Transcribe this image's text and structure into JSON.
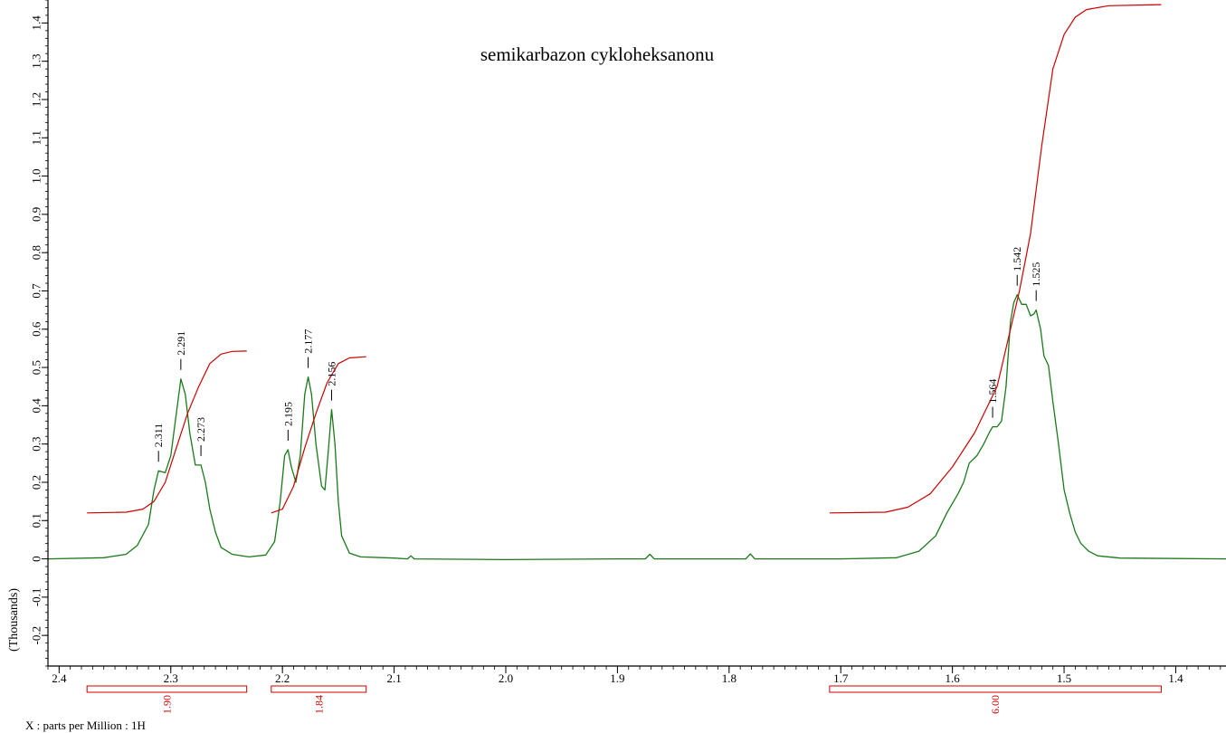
{
  "chart_data": {
    "type": "line",
    "title": "semikarbazon cykloheksanonu",
    "xlabel": "X : parts per Million : 1H",
    "ylabel": "(Thousands)",
    "xlim": [
      2.41,
      1.355
    ],
    "ylim": [
      -0.28,
      1.46
    ],
    "x_ticks": [
      "2.4",
      "2.3",
      "2.2",
      "2.1",
      "2.0",
      "1.9",
      "1.8",
      "1.7",
      "1.6",
      "1.5",
      "1.4"
    ],
    "y_ticks": [
      "-0.2",
      "-0.1",
      "0",
      "0.1",
      "0.2",
      "0.3",
      "0.4",
      "0.5",
      "0.6",
      "0.7",
      "0.8",
      "0.9",
      "1.0",
      "1.1",
      "1.2",
      "1.3",
      "1.4"
    ],
    "grid": false,
    "colors": {
      "spectrum": "#1a7a1a",
      "integral": "#cc0000",
      "axis": "#000000"
    },
    "series": [
      {
        "role": "spectrum",
        "points": [
          [
            2.41,
            0.0
          ],
          [
            2.36,
            0.003
          ],
          [
            2.34,
            0.012
          ],
          [
            2.33,
            0.035
          ],
          [
            2.32,
            0.09
          ],
          [
            2.315,
            0.18
          ],
          [
            2.311,
            0.23
          ],
          [
            2.305,
            0.225
          ],
          [
            2.3,
            0.27
          ],
          [
            2.295,
            0.38
          ],
          [
            2.291,
            0.47
          ],
          [
            2.287,
            0.43
          ],
          [
            2.283,
            0.33
          ],
          [
            2.278,
            0.245
          ],
          [
            2.273,
            0.245
          ],
          [
            2.269,
            0.2
          ],
          [
            2.265,
            0.13
          ],
          [
            2.26,
            0.07
          ],
          [
            2.255,
            0.03
          ],
          [
            2.245,
            0.012
          ],
          [
            2.23,
            0.005
          ],
          [
            2.215,
            0.01
          ],
          [
            2.207,
            0.045
          ],
          [
            2.202,
            0.15
          ],
          [
            2.198,
            0.27
          ],
          [
            2.195,
            0.285
          ],
          [
            2.192,
            0.24
          ],
          [
            2.188,
            0.2
          ],
          [
            2.184,
            0.27
          ],
          [
            2.18,
            0.43
          ],
          [
            2.177,
            0.475
          ],
          [
            2.174,
            0.43
          ],
          [
            2.17,
            0.3
          ],
          [
            2.165,
            0.19
          ],
          [
            2.162,
            0.18
          ],
          [
            2.159,
            0.28
          ],
          [
            2.156,
            0.39
          ],
          [
            2.153,
            0.3
          ],
          [
            2.15,
            0.15
          ],
          [
            2.147,
            0.06
          ],
          [
            2.14,
            0.015
          ],
          [
            2.13,
            0.005
          ],
          [
            2.1,
            0.002
          ],
          [
            2.088,
            0.0
          ],
          [
            2.085,
            0.008
          ],
          [
            2.082,
            0.0
          ],
          [
            2.0,
            -0.002
          ],
          [
            1.9,
            0.0
          ],
          [
            1.875,
            0.0
          ],
          [
            1.871,
            0.012
          ],
          [
            1.867,
            0.0
          ],
          [
            1.785,
            0.0
          ],
          [
            1.781,
            0.013
          ],
          [
            1.777,
            0.0
          ],
          [
            1.7,
            0.0
          ],
          [
            1.65,
            0.003
          ],
          [
            1.63,
            0.02
          ],
          [
            1.615,
            0.06
          ],
          [
            1.605,
            0.12
          ],
          [
            1.595,
            0.17
          ],
          [
            1.59,
            0.2
          ],
          [
            1.585,
            0.25
          ],
          [
            1.578,
            0.27
          ],
          [
            1.572,
            0.3
          ],
          [
            1.567,
            0.33
          ],
          [
            1.564,
            0.345
          ],
          [
            1.56,
            0.345
          ],
          [
            1.556,
            0.36
          ],
          [
            1.552,
            0.45
          ],
          [
            1.548,
            0.62
          ],
          [
            1.545,
            0.67
          ],
          [
            1.542,
            0.69
          ],
          [
            1.538,
            0.665
          ],
          [
            1.534,
            0.665
          ],
          [
            1.53,
            0.635
          ],
          [
            1.527,
            0.64
          ],
          [
            1.525,
            0.65
          ],
          [
            1.521,
            0.6
          ],
          [
            1.518,
            0.53
          ],
          [
            1.514,
            0.505
          ],
          [
            1.51,
            0.41
          ],
          [
            1.505,
            0.3
          ],
          [
            1.5,
            0.18
          ],
          [
            1.495,
            0.12
          ],
          [
            1.49,
            0.07
          ],
          [
            1.485,
            0.04
          ],
          [
            1.478,
            0.02
          ],
          [
            1.47,
            0.008
          ],
          [
            1.45,
            0.002
          ],
          [
            1.355,
            0.0
          ]
        ]
      },
      {
        "role": "integral",
        "points": [
          [
            2.375,
            0.12
          ],
          [
            2.34,
            0.122
          ],
          [
            2.325,
            0.13
          ],
          [
            2.315,
            0.15
          ],
          [
            2.305,
            0.2
          ],
          [
            2.295,
            0.29
          ],
          [
            2.285,
            0.38
          ],
          [
            2.275,
            0.45
          ],
          [
            2.265,
            0.51
          ],
          [
            2.255,
            0.535
          ],
          [
            2.245,
            0.542
          ],
          [
            2.232,
            0.543
          ],
          [
            2.21,
            0.12
          ],
          [
            2.2,
            0.13
          ],
          [
            2.19,
            0.19
          ],
          [
            2.18,
            0.29
          ],
          [
            2.17,
            0.38
          ],
          [
            2.16,
            0.46
          ],
          [
            2.15,
            0.51
          ],
          [
            2.14,
            0.525
          ],
          [
            2.125,
            0.528
          ],
          [
            1.71,
            0.12
          ],
          [
            1.66,
            0.122
          ],
          [
            1.64,
            0.135
          ],
          [
            1.62,
            0.17
          ],
          [
            1.6,
            0.24
          ],
          [
            1.58,
            0.33
          ],
          [
            1.56,
            0.45
          ],
          [
            1.54,
            0.7
          ],
          [
            1.53,
            0.85
          ],
          [
            1.52,
            1.08
          ],
          [
            1.51,
            1.28
          ],
          [
            1.5,
            1.37
          ],
          [
            1.49,
            1.415
          ],
          [
            1.48,
            1.435
          ],
          [
            1.46,
            1.445
          ],
          [
            1.413,
            1.448
          ]
        ]
      }
    ],
    "integral_segment_breaks": [
      12,
      21
    ],
    "peak_labels": [
      {
        "x": 2.311,
        "y": 0.23,
        "label": "2.311"
      },
      {
        "x": 2.291,
        "y": 0.47,
        "label": "2.291"
      },
      {
        "x": 2.273,
        "y": 0.245,
        "label": "2.273"
      },
      {
        "x": 2.195,
        "y": 0.285,
        "label": "2.195"
      },
      {
        "x": 2.177,
        "y": 0.475,
        "label": "2.177"
      },
      {
        "x": 2.156,
        "y": 0.39,
        "label": "2.156"
      },
      {
        "x": 1.564,
        "y": 0.345,
        "label": "1.564"
      },
      {
        "x": 1.542,
        "y": 0.69,
        "label": "1.542"
      },
      {
        "x": 1.525,
        "y": 0.65,
        "label": "1.525"
      }
    ],
    "integrals": [
      {
        "from": 2.375,
        "to": 2.232,
        "value": "1.90"
      },
      {
        "from": 2.21,
        "to": 2.125,
        "value": "1.84"
      },
      {
        "from": 1.71,
        "to": 1.413,
        "value": "6.00"
      }
    ]
  }
}
